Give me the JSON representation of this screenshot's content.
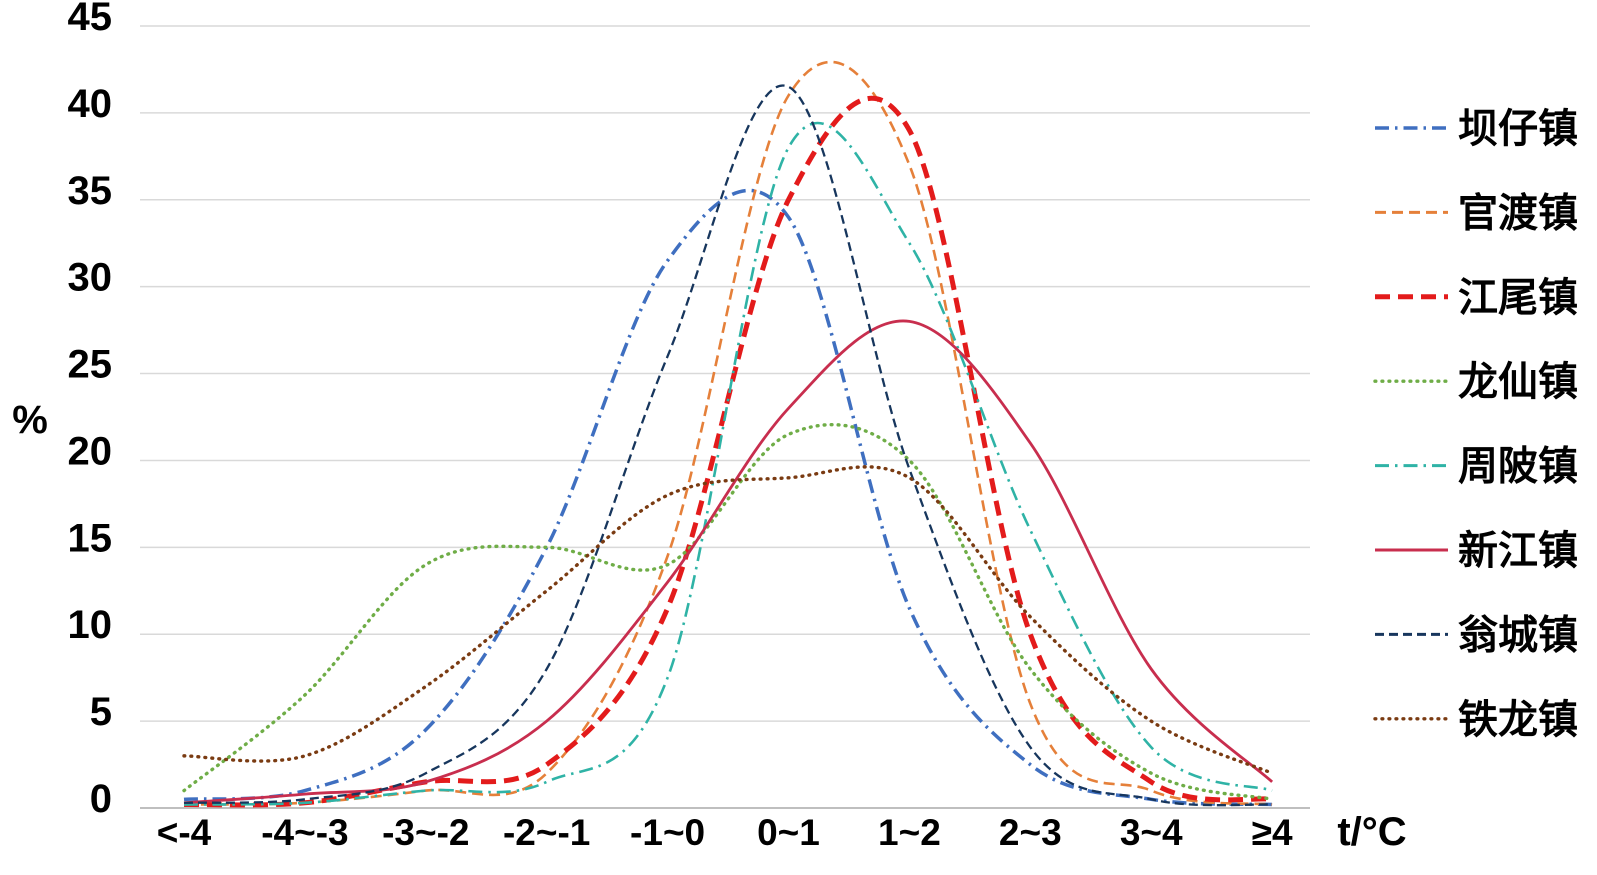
{
  "page": {
    "background": "#ffffff"
  },
  "chart_data": {
    "type": "line",
    "title": "",
    "xlabel": "t/°C",
    "ylabel": "%",
    "categories": [
      "<-4",
      "-4~-3",
      "-3~-2",
      "-2~-1",
      "-1~0",
      "0~1",
      "1~2",
      "2~3",
      "3~4",
      "≥4"
    ],
    "ylim": [
      0,
      45
    ],
    "yticks": [
      0,
      5,
      10,
      15,
      20,
      25,
      30,
      35,
      40,
      45
    ],
    "grid": "horizontal",
    "legend_position": "right",
    "line_smoothing": true,
    "grid_color": "#d9d9d9",
    "axis_color": "#bfbfbf",
    "series": [
      {
        "name": "坝仔镇",
        "color": "#3f6fc0",
        "style": "dash-dot",
        "width": 3.5,
        "values": [
          0.5,
          1,
          4.5,
          15,
          31.5,
          34,
          11.5,
          2.5,
          0.5,
          0.2
        ]
      },
      {
        "name": "官渡镇",
        "color": "#e5803a",
        "style": "dashed",
        "width": 2.6,
        "values": [
          0.2,
          0.3,
          1,
          2,
          14.5,
          41,
          37,
          6,
          1,
          0.2
        ]
      },
      {
        "name": "江尾镇",
        "color": "#e31b1b",
        "style": "dashed-thick",
        "width": 5,
        "values": [
          0.2,
          0.3,
          1.5,
          2.5,
          11.5,
          35,
          39,
          10,
          1.5,
          0.5
        ]
      },
      {
        "name": "龙仙镇",
        "color": "#6fad47",
        "style": "dotted",
        "width": 3.4,
        "values": [
          1,
          6.5,
          14,
          15,
          14,
          21.5,
          20,
          8,
          2,
          0.5
        ]
      },
      {
        "name": "周陂镇",
        "color": "#2fb3a6",
        "style": "dash-dot",
        "width": 2.6,
        "values": [
          0.2,
          0.3,
          1,
          1.5,
          7.5,
          38,
          32.5,
          16,
          3.5,
          1
        ]
      },
      {
        "name": "新江镇",
        "color": "#c82e4e",
        "style": "solid",
        "width": 2.8,
        "values": [
          0.3,
          0.8,
          1.5,
          5,
          13,
          23,
          28,
          21,
          8,
          1.5
        ]
      },
      {
        "name": "翁城镇",
        "color": "#17365d",
        "style": "dashed-thin",
        "width": 2.3,
        "values": [
          0.3,
          0.5,
          2,
          8,
          26,
          41.5,
          19.5,
          3.5,
          0.5,
          0.2
        ]
      },
      {
        "name": "铁龙镇",
        "color": "#7a3b12",
        "style": "dotted",
        "width": 3.4,
        "values": [
          3,
          3,
          7,
          12.5,
          18,
          19,
          19,
          11,
          5,
          2
        ]
      }
    ]
  }
}
